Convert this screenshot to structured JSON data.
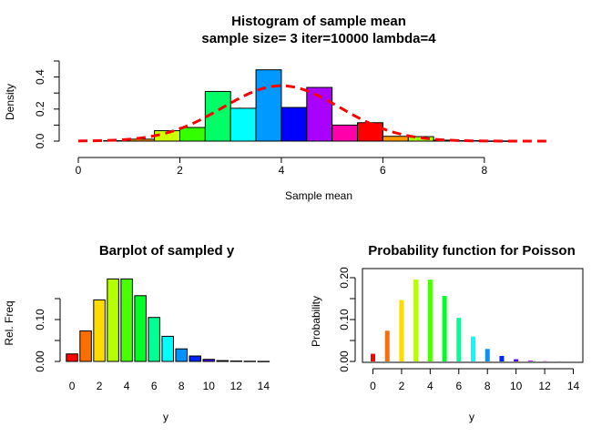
{
  "chart_data": [
    {
      "type": "bar",
      "title": "Histogram of sample mean",
      "subtitle": "sample size= 3 iter=10000 lambda=4",
      "xlabel": "Sample mean",
      "ylabel": "Density",
      "xlim": [
        0,
        9.33
      ],
      "ylim": [
        0,
        0.5
      ],
      "xticks": [
        0,
        2,
        4,
        6,
        8
      ],
      "yticks": [
        0.0,
        0.2,
        0.4
      ],
      "bin_width": 0.5,
      "bins": [
        {
          "start": 0.5,
          "value": 0.003,
          "color": "#FF0000"
        },
        {
          "start": 1.0,
          "value": 0.012,
          "color": "#FF9900"
        },
        {
          "start": 1.5,
          "value": 0.065,
          "color": "#CCFF00"
        },
        {
          "start": 2.0,
          "value": 0.085,
          "color": "#33FF00"
        },
        {
          "start": 2.5,
          "value": 0.31,
          "color": "#00FF66"
        },
        {
          "start": 3.0,
          "value": 0.205,
          "color": "#00FFFF"
        },
        {
          "start": 3.5,
          "value": 0.445,
          "color": "#0066FF"
        },
        {
          "start": 4.0,
          "value": 0.21,
          "color": "#3300FF"
        },
        {
          "start": 4.5,
          "value": 0.335,
          "color": "#CC00FF"
        },
        {
          "start": 5.0,
          "value": 0.1,
          "color": "#FF0099"
        },
        {
          "start": 5.5,
          "value": 0.115,
          "color": "#FF0000"
        },
        {
          "start": 6.0,
          "value": 0.03,
          "color": "#FF9900"
        },
        {
          "start": 6.5,
          "value": 0.028,
          "color": "#CCFF00"
        },
        {
          "start": 7.0,
          "value": 0.006,
          "color": "#33FF00"
        },
        {
          "start": 7.5,
          "value": 0.003,
          "color": "#00FF66"
        },
        {
          "start": 8.0,
          "value": 0.001,
          "color": "#00FFFF"
        }
      ],
      "bin_colors_on_screen": [
        "#FF0000",
        "#FF9900",
        "#CCFF00",
        "#33FF00",
        "#00FF66",
        "#00FFFF",
        "#0099FF",
        "#0000FF",
        "#AA00FF",
        "#FF00AA",
        "#FF0000",
        "#FF9900",
        "#AAFF00",
        "#33FF00",
        "#00FF66",
        "#00FFFF"
      ],
      "overlay": {
        "type": "line",
        "style": "dashed",
        "color": "#FF0000",
        "description_values": "normal density approx (mean 4, sd 1.155)",
        "mean": 4,
        "sd": 1.155,
        "x_range": [
          0,
          9.33
        ]
      }
    },
    {
      "type": "bar",
      "title": "Barplot of sampled y",
      "xlabel": "y",
      "ylabel": "Rel. Freq",
      "ylim": [
        0,
        0.2
      ],
      "yticks": [
        0.0,
        0.1
      ],
      "categories": [
        0,
        1,
        2,
        3,
        4,
        5,
        6,
        7,
        8,
        9,
        10,
        11,
        12,
        13,
        14
      ],
      "xtick_labels": [
        0,
        2,
        4,
        6,
        8,
        10,
        12,
        14
      ],
      "values": [
        0.018,
        0.073,
        0.147,
        0.197,
        0.197,
        0.157,
        0.105,
        0.06,
        0.03,
        0.013,
        0.005,
        0.002,
        0.001,
        0.0005,
        0.0002
      ],
      "colors": [
        "#FF0000",
        "#FF6D00",
        "#FFDB00",
        "#B6FF00",
        "#49FF00",
        "#00FF24",
        "#00FF92",
        "#00FFFF",
        "#0092FF",
        "#0024FF",
        "#4900FF",
        "#B600FF",
        "#FF00DB",
        "#FF006D",
        "#FF0000"
      ]
    },
    {
      "type": "bar",
      "title": "Probability function for Poisson",
      "xlabel": "y",
      "ylabel": "Probability",
      "ylim": [
        0,
        0.2
      ],
      "yticks": [
        0.0,
        0.1,
        0.2
      ],
      "ytick_labels": [
        "0.00",
        "0.10",
        "0.20"
      ],
      "categories": [
        0,
        1,
        2,
        3,
        4,
        5,
        6,
        7,
        8,
        9,
        10,
        11,
        12,
        13,
        14
      ],
      "xtick_labels": [
        0,
        2,
        4,
        6,
        8,
        10,
        12,
        14
      ],
      "values": [
        0.0183,
        0.0733,
        0.1465,
        0.1954,
        0.1954,
        0.1563,
        0.1042,
        0.0595,
        0.0298,
        0.0132,
        0.0053,
        0.0019,
        0.0006,
        0.0002,
        0.0001
      ],
      "colors": [
        "#FF0000",
        "#FF6D00",
        "#FFDB00",
        "#B6FF00",
        "#49FF00",
        "#00FF24",
        "#00FF92",
        "#00FFFF",
        "#0092FF",
        "#0024FF",
        "#4900FF",
        "#B600FF",
        "#FF00DB",
        "#FF006D",
        "#FF0000"
      ]
    }
  ]
}
